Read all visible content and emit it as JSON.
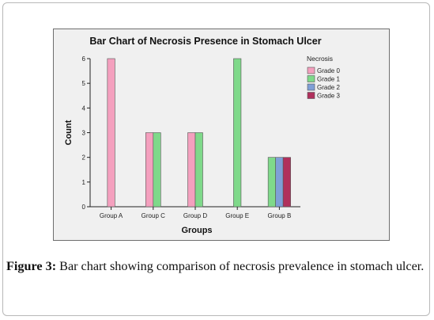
{
  "chart_data": {
    "type": "bar",
    "title": "Bar Chart of Necrosis Presence in Stomach Ulcer",
    "xlabel": "Groups",
    "ylabel": "Count",
    "ylim": [
      0,
      6
    ],
    "yticks": [
      "0",
      "1",
      "2",
      "3",
      "4",
      "5",
      "6"
    ],
    "categories": [
      "Group A",
      "Group C",
      "Group D",
      "Group E",
      "Group B"
    ],
    "legend_title": "Necrosis",
    "legend_position": "right",
    "grid": false,
    "series": [
      {
        "name": "Grade 0",
        "color": "#f4a0be",
        "values": [
          6,
          3,
          3,
          null,
          null
        ]
      },
      {
        "name": "Grade 1",
        "color": "#7fd98a",
        "values": [
          null,
          3,
          3,
          6,
          2
        ]
      },
      {
        "name": "Grade 2",
        "color": "#7f9fd6",
        "values": [
          null,
          null,
          null,
          null,
          2
        ]
      },
      {
        "name": "Grade 3",
        "color": "#b0305c",
        "values": [
          null,
          null,
          null,
          null,
          2
        ]
      }
    ]
  },
  "caption": {
    "label": "Figure 3:",
    "text": "Bar chart showing comparison of necrosis prevalence in stomach ulcer."
  }
}
